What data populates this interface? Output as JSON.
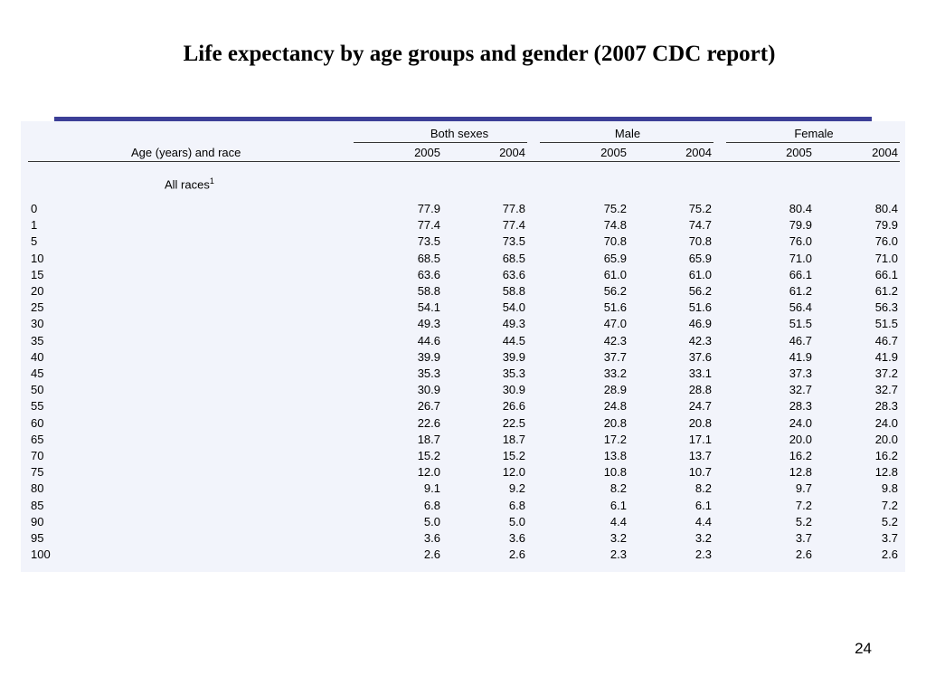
{
  "slide": {
    "title": "Life expectancy by age groups and gender (2007 CDC report)",
    "page_number": "24",
    "accent_color": "#3c3f97"
  },
  "table": {
    "groups": [
      "Both sexes",
      "Male",
      "Female"
    ],
    "stub_header": "Age (years) and race",
    "year_headers": [
      "2005",
      "2004",
      "2005",
      "2004",
      "2005",
      "2004"
    ],
    "section_label": "All races",
    "section_footnote": "1",
    "rows": [
      {
        "age": "0",
        "values": [
          "77.9",
          "77.8",
          "75.2",
          "75.2",
          "80.4",
          "80.4"
        ]
      },
      {
        "age": "1",
        "values": [
          "77.4",
          "77.4",
          "74.8",
          "74.7",
          "79.9",
          "79.9"
        ]
      },
      {
        "age": "5",
        "values": [
          "73.5",
          "73.5",
          "70.8",
          "70.8",
          "76.0",
          "76.0"
        ]
      },
      {
        "age": "10",
        "values": [
          "68.5",
          "68.5",
          "65.9",
          "65.9",
          "71.0",
          "71.0"
        ]
      },
      {
        "age": "15",
        "values": [
          "63.6",
          "63.6",
          "61.0",
          "61.0",
          "66.1",
          "66.1"
        ]
      },
      {
        "age": "20",
        "values": [
          "58.8",
          "58.8",
          "56.2",
          "56.2",
          "61.2",
          "61.2"
        ]
      },
      {
        "age": "25",
        "values": [
          "54.1",
          "54.0",
          "51.6",
          "51.6",
          "56.4",
          "56.3"
        ]
      },
      {
        "age": "30",
        "values": [
          "49.3",
          "49.3",
          "47.0",
          "46.9",
          "51.5",
          "51.5"
        ]
      },
      {
        "age": "35",
        "values": [
          "44.6",
          "44.5",
          "42.3",
          "42.3",
          "46.7",
          "46.7"
        ]
      },
      {
        "age": "40",
        "values": [
          "39.9",
          "39.9",
          "37.7",
          "37.6",
          "41.9",
          "41.9"
        ]
      },
      {
        "age": "45",
        "values": [
          "35.3",
          "35.3",
          "33.2",
          "33.1",
          "37.3",
          "37.2"
        ]
      },
      {
        "age": "50",
        "values": [
          "30.9",
          "30.9",
          "28.9",
          "28.8",
          "32.7",
          "32.7"
        ]
      },
      {
        "age": "55",
        "values": [
          "26.7",
          "26.6",
          "24.8",
          "24.7",
          "28.3",
          "28.3"
        ]
      },
      {
        "age": "60",
        "values": [
          "22.6",
          "22.5",
          "20.8",
          "20.8",
          "24.0",
          "24.0"
        ]
      },
      {
        "age": "65",
        "values": [
          "18.7",
          "18.7",
          "17.2",
          "17.1",
          "20.0",
          "20.0"
        ]
      },
      {
        "age": "70",
        "values": [
          "15.2",
          "15.2",
          "13.8",
          "13.7",
          "16.2",
          "16.2"
        ]
      },
      {
        "age": "75",
        "values": [
          "12.0",
          "12.0",
          "10.8",
          "10.7",
          "12.8",
          "12.8"
        ]
      },
      {
        "age": "80",
        "values": [
          "9.1",
          "9.2",
          "8.2",
          "8.2",
          "9.7",
          "9.8"
        ]
      },
      {
        "age": "85",
        "values": [
          "6.8",
          "6.8",
          "6.1",
          "6.1",
          "7.2",
          "7.2"
        ]
      },
      {
        "age": "90",
        "values": [
          "5.0",
          "5.0",
          "4.4",
          "4.4",
          "5.2",
          "5.2"
        ]
      },
      {
        "age": "95",
        "values": [
          "3.6",
          "3.6",
          "3.2",
          "3.2",
          "3.7",
          "3.7"
        ]
      },
      {
        "age": "100",
        "values": [
          "2.6",
          "2.6",
          "2.3",
          "2.3",
          "2.6",
          "2.6"
        ]
      }
    ]
  }
}
